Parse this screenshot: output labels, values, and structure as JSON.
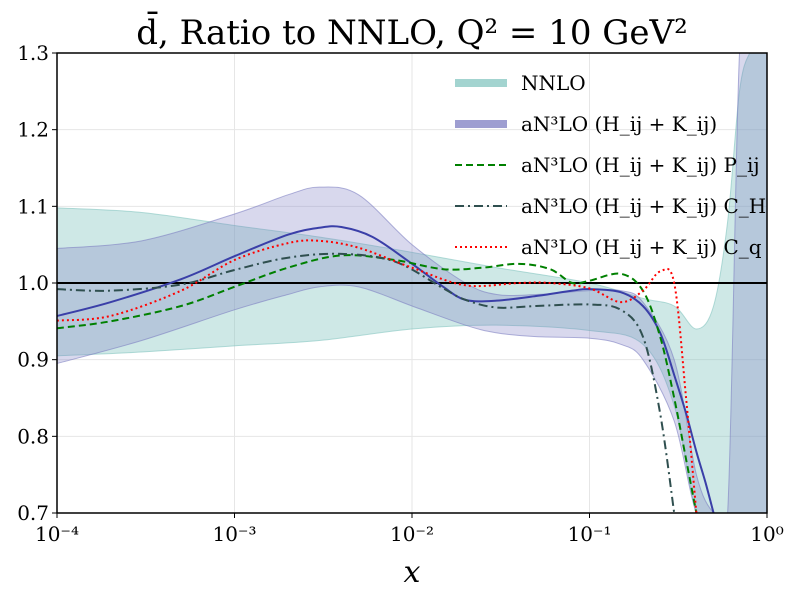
{
  "chart_data": {
    "type": "line",
    "title": "d̄, Ratio to NNLO, Q² = 10 GeV²",
    "xlabel": "x",
    "ylabel": "",
    "xscale": "log",
    "xlim": [
      0.0001,
      1
    ],
    "ylim": [
      0.7,
      1.3
    ],
    "grid": true,
    "legend_position": "top-right",
    "x_ticks": [
      {
        "value": 0.0001,
        "label": "10⁻⁴"
      },
      {
        "value": 0.001,
        "label": "10⁻³"
      },
      {
        "value": 0.01,
        "label": "10⁻²"
      },
      {
        "value": 0.1,
        "label": "10⁻¹"
      },
      {
        "value": 1,
        "label": "10⁰"
      }
    ],
    "y_ticks": [
      0.7,
      0.8,
      0.9,
      1.0,
      1.1,
      1.2,
      1.3
    ],
    "reference_line": 1.0,
    "bands": [
      {
        "name": "NNLO",
        "color": "#84c5c0",
        "opacity": 0.4,
        "x": [
          0.0001,
          0.0003,
          0.001,
          0.003,
          0.01,
          0.03,
          0.1,
          0.2,
          0.3,
          0.4,
          0.5,
          0.6,
          0.7,
          0.8,
          0.9,
          1.0
        ],
        "upper": [
          1.098,
          1.092,
          1.075,
          1.06,
          1.04,
          1.02,
          1.0,
          0.98,
          0.97,
          0.94,
          0.97,
          1.08,
          1.25,
          1.3,
          1.3,
          1.3
        ],
        "lower": [
          0.905,
          0.91,
          0.918,
          0.925,
          0.94,
          0.945,
          0.938,
          0.92,
          0.84,
          0.7,
          0.7,
          0.7,
          0.7,
          0.7,
          0.7,
          0.7
        ]
      },
      {
        "name": "aN³LO (H_ij + K_ij)",
        "color": "#7d7ec2",
        "opacity": 0.3,
        "x": [
          0.0001,
          0.0003,
          0.001,
          0.002,
          0.003,
          0.005,
          0.01,
          0.02,
          0.03,
          0.05,
          0.1,
          0.15,
          0.2,
          0.3,
          0.4,
          0.5,
          0.6,
          0.7,
          0.8,
          1.0
        ],
        "upper": [
          1.045,
          1.055,
          1.09,
          1.115,
          1.125,
          1.115,
          1.05,
          1.0,
          0.985,
          0.985,
          0.99,
          0.99,
          0.975,
          0.9,
          0.75,
          0.7,
          0.7,
          1.3,
          1.3,
          1.3
        ],
        "lower": [
          0.895,
          0.925,
          0.965,
          0.985,
          0.995,
          0.995,
          0.97,
          0.945,
          0.935,
          0.93,
          0.928,
          0.92,
          0.9,
          0.82,
          0.7,
          0.7,
          0.7,
          0.7,
          0.7,
          0.7
        ]
      }
    ],
    "series": [
      {
        "name": "aN³LO (H_ij + K_ij)",
        "color": "#3a3fa8",
        "style": "solid",
        "x": [
          0.0001,
          0.0002,
          0.0005,
          0.001,
          0.002,
          0.003,
          0.004,
          0.006,
          0.01,
          0.015,
          0.02,
          0.03,
          0.05,
          0.08,
          0.1,
          0.15,
          0.2,
          0.25,
          0.3,
          0.35,
          0.4,
          0.45,
          0.5
        ],
        "values": [
          0.957,
          0.975,
          1.005,
          1.035,
          1.063,
          1.072,
          1.073,
          1.06,
          1.025,
          0.995,
          0.978,
          0.977,
          0.983,
          0.99,
          0.992,
          0.988,
          0.97,
          0.935,
          0.88,
          0.83,
          0.78,
          0.74,
          0.7
        ]
      },
      {
        "name": "aN³LO (H_ij + K_ij) P_ij",
        "color": "#008000",
        "style": "dashed",
        "x": [
          0.0001,
          0.0002,
          0.0005,
          0.001,
          0.002,
          0.004,
          0.008,
          0.015,
          0.025,
          0.04,
          0.06,
          0.08,
          0.1,
          0.15,
          0.2,
          0.25,
          0.3,
          0.35,
          0.4
        ],
        "values": [
          0.941,
          0.95,
          0.97,
          0.995,
          1.02,
          1.036,
          1.03,
          1.018,
          1.02,
          1.025,
          1.018,
          1.0,
          1.003,
          1.012,
          0.99,
          0.93,
          0.85,
          0.77,
          0.7
        ]
      },
      {
        "name": "aN³LO (H_ij + K_ij) C_H",
        "color": "#2f4f4f",
        "style": "dashdot",
        "x": [
          0.0001,
          0.0002,
          0.0005,
          0.001,
          0.002,
          0.004,
          0.008,
          0.015,
          0.02,
          0.03,
          0.05,
          0.1,
          0.15,
          0.2,
          0.25,
          0.3
        ],
        "values": [
          0.992,
          0.99,
          0.998,
          1.017,
          1.033,
          1.038,
          1.028,
          0.993,
          0.978,
          0.968,
          0.97,
          0.972,
          0.965,
          0.93,
          0.83,
          0.7
        ]
      },
      {
        "name": "aN³LO (H_ij + K_ij) C_q",
        "color": "#ff0000",
        "style": "dotted",
        "x": [
          0.0001,
          0.0002,
          0.0005,
          0.001,
          0.002,
          0.003,
          0.005,
          0.01,
          0.02,
          0.04,
          0.06,
          0.1,
          0.15,
          0.2,
          0.25,
          0.3,
          0.35,
          0.4
        ],
        "values": [
          0.951,
          0.957,
          0.99,
          1.03,
          1.052,
          1.055,
          1.046,
          1.02,
          0.997,
          1.0,
          1.0,
          0.993,
          0.975,
          0.99,
          1.015,
          1.0,
          0.85,
          0.7
        ]
      }
    ]
  }
}
